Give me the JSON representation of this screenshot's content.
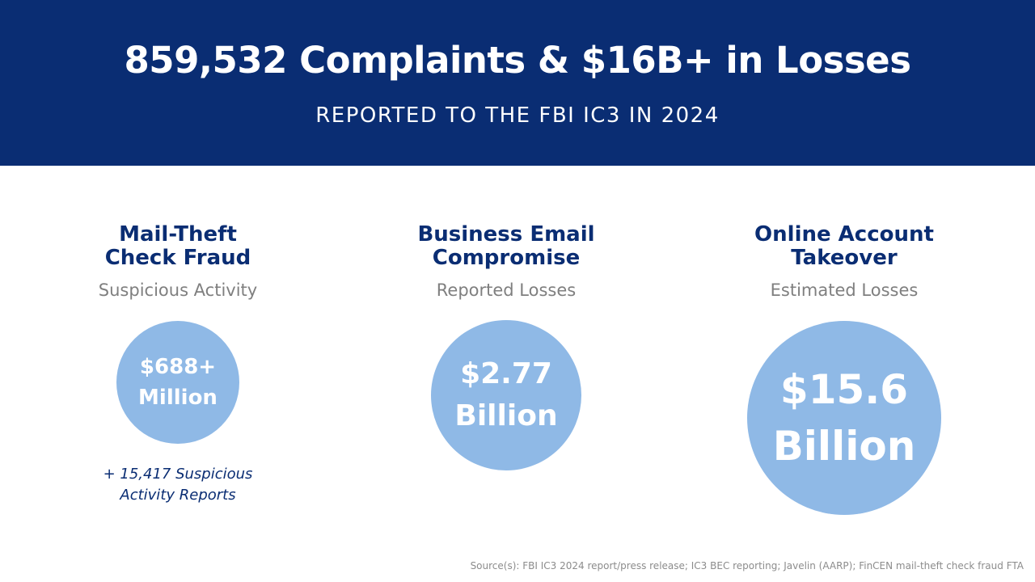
{
  "header": {
    "headline": "859,532 Complaints & $16B+ in Losses",
    "subhead": "REPORTED TO THE FBI IC3 IN 2024"
  },
  "columns": [
    {
      "title_line1": "Mail-Theft",
      "title_line2": "Check Fraud",
      "subtitle": "Suspicious Activity",
      "value_line1": "$688+",
      "value_line2": "Million",
      "note_line1": "+ 15,417 Suspicious",
      "note_line2": "Activity Reports"
    },
    {
      "title_line1": "Business Email",
      "title_line2": "Compromise",
      "subtitle": "Reported Losses",
      "value_line1": "$2.77",
      "value_line2": "Billion"
    },
    {
      "title_line1": "Online Account",
      "title_line2": "Takeover",
      "subtitle": "Estimated Losses",
      "value_line1": "$15.6",
      "value_line2": "Billion"
    }
  ],
  "source": "Source(s): FBI IC3 2024 report/press release; IC3 BEC reporting; Javelin (AARP); FinCEN mail-theft check fraud FTA",
  "colors": {
    "header_bg": "#0a2d73",
    "title_text": "#0a2d73",
    "circle_fill": "#8fb9e6",
    "subtitle_text": "#7f7f7f"
  }
}
